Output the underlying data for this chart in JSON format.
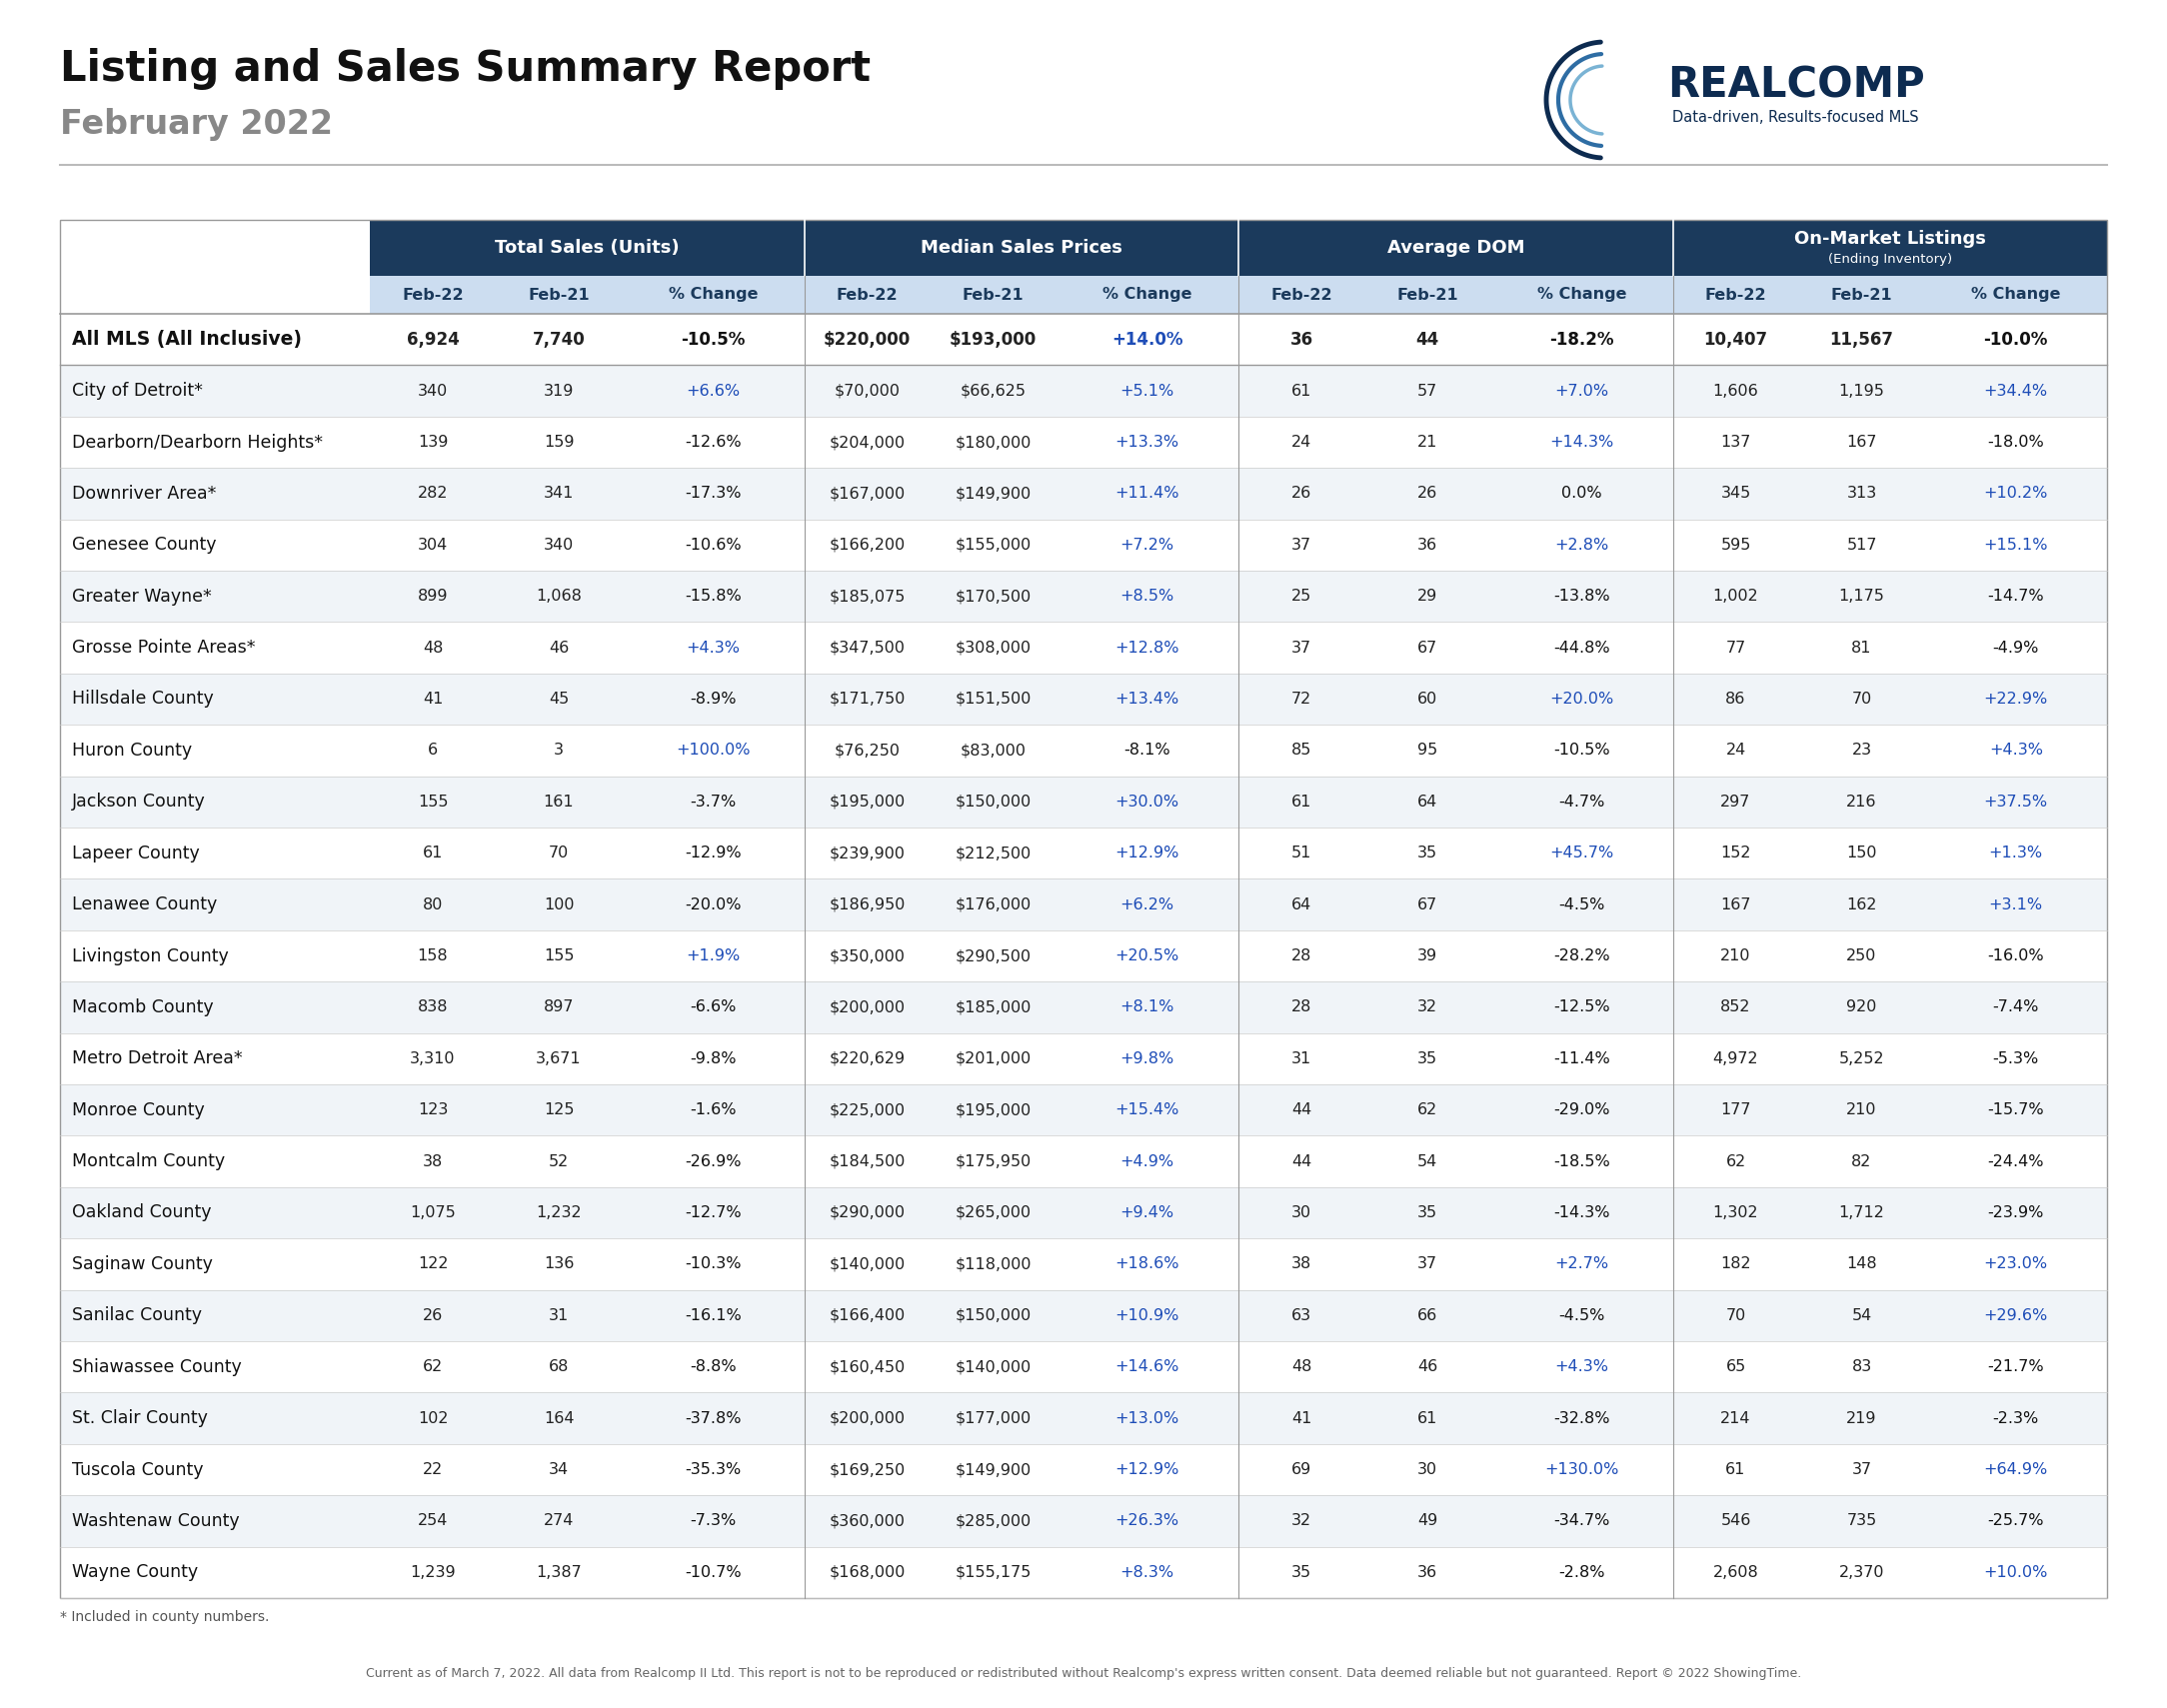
{
  "title": "Listing and Sales Summary Report",
  "subtitle": "February 2022",
  "footer": "Current as of March 7, 2022. All data from Realcomp II Ltd. This report is not to be reproduced or redistributed without Realcomp's express written consent. Data deemed reliable but not guaranteed. Report © 2022 ShowingTime.",
  "footnote": "* Included in county numbers.",
  "col_groups": [
    {
      "label": "Total Sales (Units)"
    },
    {
      "label": "Median Sales Prices"
    },
    {
      "label": "Average DOM"
    },
    {
      "label": "On-Market Listings",
      "suffix": "(Ending Inventory)"
    }
  ],
  "rows": [
    {
      "name": "All MLS (All Inclusive)",
      "bold": true,
      "ts_22": "6,924",
      "ts_21": "7,740",
      "ts_ch": "-10.5%",
      "ms_22": "$220,000",
      "ms_21": "$193,000",
      "ms_ch": "+14.0%",
      "dom_22": "36",
      "dom_21": "44",
      "dom_ch": "-18.2%",
      "ol_22": "10,407",
      "ol_21": "11,567",
      "ol_ch": "-10.0%"
    },
    {
      "name": "City of Detroit*",
      "bold": false,
      "ts_22": "340",
      "ts_21": "319",
      "ts_ch": "+6.6%",
      "ms_22": "$70,000",
      "ms_21": "$66,625",
      "ms_ch": "+5.1%",
      "dom_22": "61",
      "dom_21": "57",
      "dom_ch": "+7.0%",
      "ol_22": "1,606",
      "ol_21": "1,195",
      "ol_ch": "+34.4%"
    },
    {
      "name": "Dearborn/Dearborn Heights*",
      "bold": false,
      "ts_22": "139",
      "ts_21": "159",
      "ts_ch": "-12.6%",
      "ms_22": "$204,000",
      "ms_21": "$180,000",
      "ms_ch": "+13.3%",
      "dom_22": "24",
      "dom_21": "21",
      "dom_ch": "+14.3%",
      "ol_22": "137",
      "ol_21": "167",
      "ol_ch": "-18.0%"
    },
    {
      "name": "Downriver Area*",
      "bold": false,
      "ts_22": "282",
      "ts_21": "341",
      "ts_ch": "-17.3%",
      "ms_22": "$167,000",
      "ms_21": "$149,900",
      "ms_ch": "+11.4%",
      "dom_22": "26",
      "dom_21": "26",
      "dom_ch": "0.0%",
      "ol_22": "345",
      "ol_21": "313",
      "ol_ch": "+10.2%"
    },
    {
      "name": "Genesee County",
      "bold": false,
      "ts_22": "304",
      "ts_21": "340",
      "ts_ch": "-10.6%",
      "ms_22": "$166,200",
      "ms_21": "$155,000",
      "ms_ch": "+7.2%",
      "dom_22": "37",
      "dom_21": "36",
      "dom_ch": "+2.8%",
      "ol_22": "595",
      "ol_21": "517",
      "ol_ch": "+15.1%"
    },
    {
      "name": "Greater Wayne*",
      "bold": false,
      "ts_22": "899",
      "ts_21": "1,068",
      "ts_ch": "-15.8%",
      "ms_22": "$185,075",
      "ms_21": "$170,500",
      "ms_ch": "+8.5%",
      "dom_22": "25",
      "dom_21": "29",
      "dom_ch": "-13.8%",
      "ol_22": "1,002",
      "ol_21": "1,175",
      "ol_ch": "-14.7%"
    },
    {
      "name": "Grosse Pointe Areas*",
      "bold": false,
      "ts_22": "48",
      "ts_21": "46",
      "ts_ch": "+4.3%",
      "ms_22": "$347,500",
      "ms_21": "$308,000",
      "ms_ch": "+12.8%",
      "dom_22": "37",
      "dom_21": "67",
      "dom_ch": "-44.8%",
      "ol_22": "77",
      "ol_21": "81",
      "ol_ch": "-4.9%"
    },
    {
      "name": "Hillsdale County",
      "bold": false,
      "ts_22": "41",
      "ts_21": "45",
      "ts_ch": "-8.9%",
      "ms_22": "$171,750",
      "ms_21": "$151,500",
      "ms_ch": "+13.4%",
      "dom_22": "72",
      "dom_21": "60",
      "dom_ch": "+20.0%",
      "ol_22": "86",
      "ol_21": "70",
      "ol_ch": "+22.9%"
    },
    {
      "name": "Huron County",
      "bold": false,
      "ts_22": "6",
      "ts_21": "3",
      "ts_ch": "+100.0%",
      "ms_22": "$76,250",
      "ms_21": "$83,000",
      "ms_ch": "-8.1%",
      "dom_22": "85",
      "dom_21": "95",
      "dom_ch": "-10.5%",
      "ol_22": "24",
      "ol_21": "23",
      "ol_ch": "+4.3%"
    },
    {
      "name": "Jackson County",
      "bold": false,
      "ts_22": "155",
      "ts_21": "161",
      "ts_ch": "-3.7%",
      "ms_22": "$195,000",
      "ms_21": "$150,000",
      "ms_ch": "+30.0%",
      "dom_22": "61",
      "dom_21": "64",
      "dom_ch": "-4.7%",
      "ol_22": "297",
      "ol_21": "216",
      "ol_ch": "+37.5%"
    },
    {
      "name": "Lapeer County",
      "bold": false,
      "ts_22": "61",
      "ts_21": "70",
      "ts_ch": "-12.9%",
      "ms_22": "$239,900",
      "ms_21": "$212,500",
      "ms_ch": "+12.9%",
      "dom_22": "51",
      "dom_21": "35",
      "dom_ch": "+45.7%",
      "ol_22": "152",
      "ol_21": "150",
      "ol_ch": "+1.3%"
    },
    {
      "name": "Lenawee County",
      "bold": false,
      "ts_22": "80",
      "ts_21": "100",
      "ts_ch": "-20.0%",
      "ms_22": "$186,950",
      "ms_21": "$176,000",
      "ms_ch": "+6.2%",
      "dom_22": "64",
      "dom_21": "67",
      "dom_ch": "-4.5%",
      "ol_22": "167",
      "ol_21": "162",
      "ol_ch": "+3.1%"
    },
    {
      "name": "Livingston County",
      "bold": false,
      "ts_22": "158",
      "ts_21": "155",
      "ts_ch": "+1.9%",
      "ms_22": "$350,000",
      "ms_21": "$290,500",
      "ms_ch": "+20.5%",
      "dom_22": "28",
      "dom_21": "39",
      "dom_ch": "-28.2%",
      "ol_22": "210",
      "ol_21": "250",
      "ol_ch": "-16.0%"
    },
    {
      "name": "Macomb County",
      "bold": false,
      "ts_22": "838",
      "ts_21": "897",
      "ts_ch": "-6.6%",
      "ms_22": "$200,000",
      "ms_21": "$185,000",
      "ms_ch": "+8.1%",
      "dom_22": "28",
      "dom_21": "32",
      "dom_ch": "-12.5%",
      "ol_22": "852",
      "ol_21": "920",
      "ol_ch": "-7.4%"
    },
    {
      "name": "Metro Detroit Area*",
      "bold": false,
      "ts_22": "3,310",
      "ts_21": "3,671",
      "ts_ch": "-9.8%",
      "ms_22": "$220,629",
      "ms_21": "$201,000",
      "ms_ch": "+9.8%",
      "dom_22": "31",
      "dom_21": "35",
      "dom_ch": "-11.4%",
      "ol_22": "4,972",
      "ol_21": "5,252",
      "ol_ch": "-5.3%"
    },
    {
      "name": "Monroe County",
      "bold": false,
      "ts_22": "123",
      "ts_21": "125",
      "ts_ch": "-1.6%",
      "ms_22": "$225,000",
      "ms_21": "$195,000",
      "ms_ch": "+15.4%",
      "dom_22": "44",
      "dom_21": "62",
      "dom_ch": "-29.0%",
      "ol_22": "177",
      "ol_21": "210",
      "ol_ch": "-15.7%"
    },
    {
      "name": "Montcalm County",
      "bold": false,
      "ts_22": "38",
      "ts_21": "52",
      "ts_ch": "-26.9%",
      "ms_22": "$184,500",
      "ms_21": "$175,950",
      "ms_ch": "+4.9%",
      "dom_22": "44",
      "dom_21": "54",
      "dom_ch": "-18.5%",
      "ol_22": "62",
      "ol_21": "82",
      "ol_ch": "-24.4%"
    },
    {
      "name": "Oakland County",
      "bold": false,
      "ts_22": "1,075",
      "ts_21": "1,232",
      "ts_ch": "-12.7%",
      "ms_22": "$290,000",
      "ms_21": "$265,000",
      "ms_ch": "+9.4%",
      "dom_22": "30",
      "dom_21": "35",
      "dom_ch": "-14.3%",
      "ol_22": "1,302",
      "ol_21": "1,712",
      "ol_ch": "-23.9%"
    },
    {
      "name": "Saginaw County",
      "bold": false,
      "ts_22": "122",
      "ts_21": "136",
      "ts_ch": "-10.3%",
      "ms_22": "$140,000",
      "ms_21": "$118,000",
      "ms_ch": "+18.6%",
      "dom_22": "38",
      "dom_21": "37",
      "dom_ch": "+2.7%",
      "ol_22": "182",
      "ol_21": "148",
      "ol_ch": "+23.0%"
    },
    {
      "name": "Sanilac County",
      "bold": false,
      "ts_22": "26",
      "ts_21": "31",
      "ts_ch": "-16.1%",
      "ms_22": "$166,400",
      "ms_21": "$150,000",
      "ms_ch": "+10.9%",
      "dom_22": "63",
      "dom_21": "66",
      "dom_ch": "-4.5%",
      "ol_22": "70",
      "ol_21": "54",
      "ol_ch": "+29.6%"
    },
    {
      "name": "Shiawassee County",
      "bold": false,
      "ts_22": "62",
      "ts_21": "68",
      "ts_ch": "-8.8%",
      "ms_22": "$160,450",
      "ms_21": "$140,000",
      "ms_ch": "+14.6%",
      "dom_22": "48",
      "dom_21": "46",
      "dom_ch": "+4.3%",
      "ol_22": "65",
      "ol_21": "83",
      "ol_ch": "-21.7%"
    },
    {
      "name": "St. Clair County",
      "bold": false,
      "ts_22": "102",
      "ts_21": "164",
      "ts_ch": "-37.8%",
      "ms_22": "$200,000",
      "ms_21": "$177,000",
      "ms_ch": "+13.0%",
      "dom_22": "41",
      "dom_21": "61",
      "dom_ch": "-32.8%",
      "ol_22": "214",
      "ol_21": "219",
      "ol_ch": "-2.3%"
    },
    {
      "name": "Tuscola County",
      "bold": false,
      "ts_22": "22",
      "ts_21": "34",
      "ts_ch": "-35.3%",
      "ms_22": "$169,250",
      "ms_21": "$149,900",
      "ms_ch": "+12.9%",
      "dom_22": "69",
      "dom_21": "30",
      "dom_ch": "+130.0%",
      "ol_22": "61",
      "ol_21": "37",
      "ol_ch": "+64.9%"
    },
    {
      "name": "Washtenaw County",
      "bold": false,
      "ts_22": "254",
      "ts_21": "274",
      "ts_ch": "-7.3%",
      "ms_22": "$360,000",
      "ms_21": "$285,000",
      "ms_ch": "+26.3%",
      "dom_22": "32",
      "dom_21": "49",
      "dom_ch": "-34.7%",
      "ol_22": "546",
      "ol_21": "735",
      "ol_ch": "-25.7%"
    },
    {
      "name": "Wayne County",
      "bold": false,
      "ts_22": "1,239",
      "ts_21": "1,387",
      "ts_ch": "-10.7%",
      "ms_22": "$168,000",
      "ms_21": "$155,175",
      "ms_ch": "+8.3%",
      "dom_22": "35",
      "dom_21": "36",
      "dom_ch": "-2.8%",
      "ol_22": "2,608",
      "ol_21": "2,370",
      "ol_ch": "+10.0%"
    }
  ],
  "header_bg": "#1b3a5c",
  "subheader_bg": "#ccddf0",
  "header_text": "#ffffff",
  "subheader_text": "#1b3a5c",
  "pos_change_color": "#1e4db7",
  "neg_change_color": "#111111",
  "zero_change_color": "#111111",
  "data_text_color": "#222222",
  "bold_text_color": "#111111",
  "row_bg_white": "#ffffff",
  "row_bg_gray": "#f0f4f8",
  "divider_light": "#cccccc",
  "divider_dark": "#999999",
  "outer_border": "#999999",
  "title_color": "#111111",
  "subtitle_color": "#888888",
  "footnote_color": "#555555",
  "footer_color": "#666666"
}
